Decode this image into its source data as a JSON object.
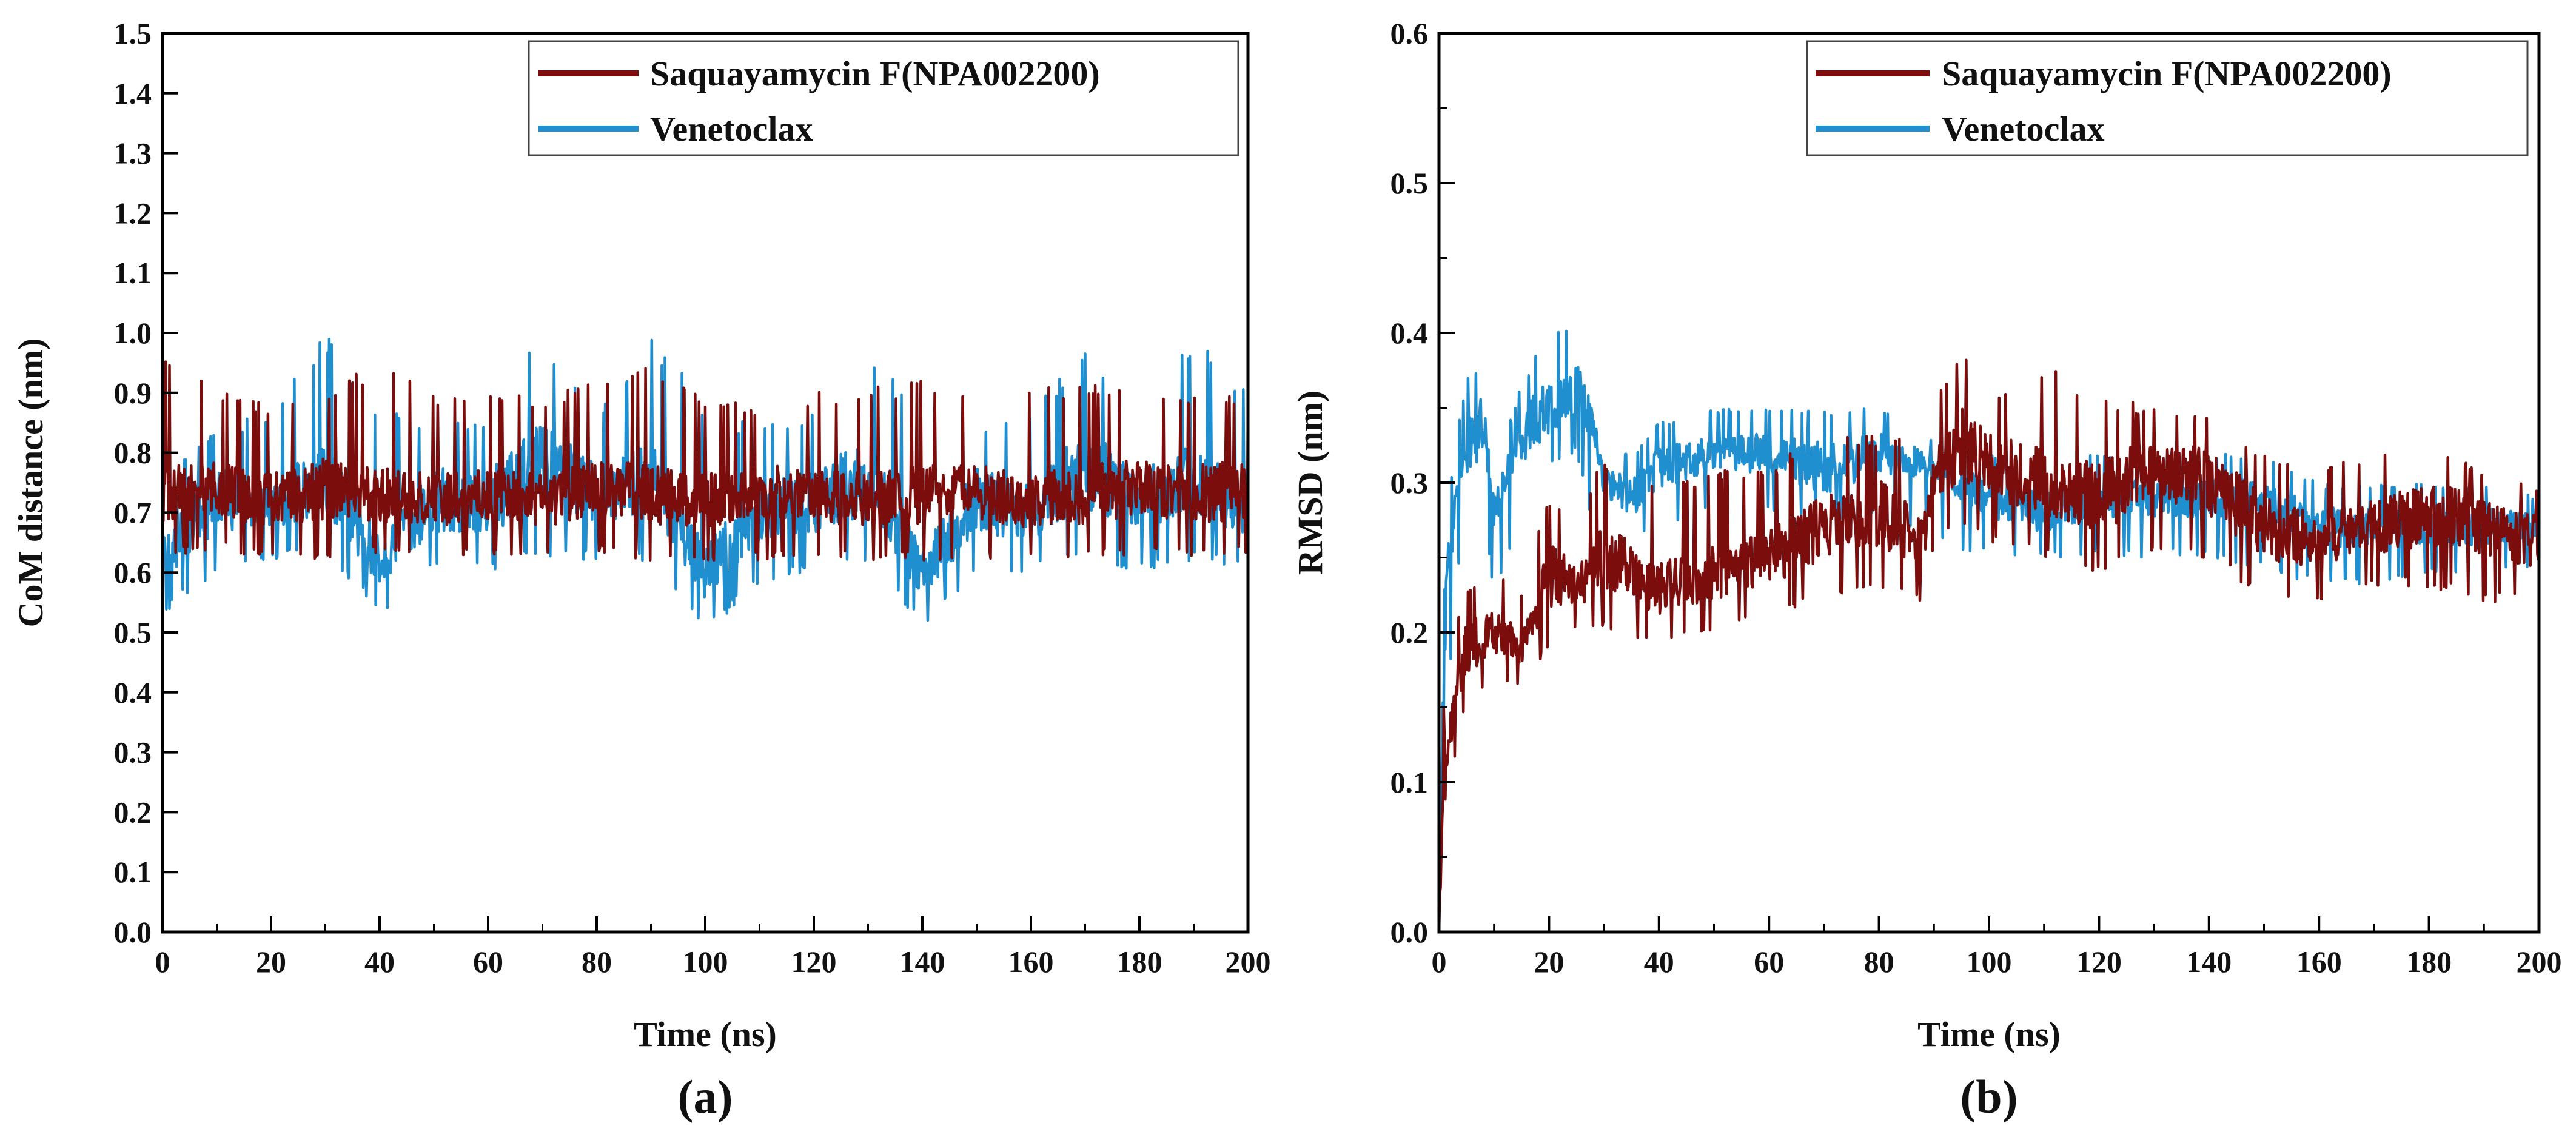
{
  "chart_data": [
    {
      "type": "line",
      "panel_label": "(a)",
      "xlabel": "Time (ns)",
      "ylabel": "CoM distance (nm)",
      "xlim": [
        0,
        200
      ],
      "ylim": [
        0.0,
        1.5
      ],
      "xticks": [
        "0",
        "20",
        "40",
        "60",
        "80",
        "100",
        "120",
        "140",
        "160",
        "180",
        "200"
      ],
      "yticks": [
        "0.0",
        "0.1",
        "0.2",
        "0.3",
        "0.4",
        "0.5",
        "0.6",
        "0.7",
        "0.8",
        "0.9",
        "1.0",
        "1.1",
        "1.2",
        "1.3",
        "1.4",
        "1.5"
      ],
      "legend_position": "top-right",
      "series": [
        {
          "name": "Saquayamycin F(NPA002200)",
          "color": "#7b0d0d",
          "x": [
            0,
            10,
            20,
            30,
            40,
            50,
            60,
            70,
            80,
            90,
            100,
            110,
            120,
            130,
            140,
            150,
            160,
            170,
            180,
            190,
            200
          ],
          "values": [
            0.73,
            0.74,
            0.72,
            0.74,
            0.73,
            0.72,
            0.73,
            0.72,
            0.74,
            0.73,
            0.72,
            0.73,
            0.73,
            0.72,
            0.73,
            0.73,
            0.72,
            0.73,
            0.74,
            0.73,
            0.74
          ],
          "fluct_low": [
            0.62,
            0.64,
            0.62,
            0.62,
            0.63,
            0.62,
            0.63,
            0.62,
            0.63,
            0.62,
            0.62,
            0.62,
            0.63,
            0.62,
            0.62,
            0.62,
            0.62,
            0.62,
            0.63,
            0.62,
            0.63
          ],
          "fluct_high": [
            0.96,
            0.91,
            0.88,
            0.9,
            0.96,
            0.9,
            0.91,
            0.9,
            0.92,
            0.95,
            0.9,
            0.88,
            0.9,
            0.91,
            0.92,
            0.9,
            0.92,
            0.91,
            0.93,
            0.9,
            0.9
          ]
        },
        {
          "name": "Venetoclax",
          "color": "#1f8fd0",
          "x": [
            0,
            10,
            20,
            30,
            40,
            50,
            60,
            70,
            80,
            90,
            100,
            110,
            120,
            130,
            140,
            150,
            160,
            170,
            180,
            190,
            200
          ],
          "values": [
            0.64,
            0.72,
            0.71,
            0.76,
            0.62,
            0.72,
            0.72,
            0.78,
            0.73,
            0.76,
            0.6,
            0.7,
            0.72,
            0.76,
            0.6,
            0.72,
            0.7,
            0.78,
            0.72,
            0.76,
            0.7
          ],
          "fluct_low": [
            0.53,
            0.6,
            0.62,
            0.63,
            0.53,
            0.6,
            0.6,
            0.62,
            0.62,
            0.62,
            0.5,
            0.58,
            0.6,
            0.62,
            0.51,
            0.6,
            0.6,
            0.62,
            0.6,
            0.62,
            0.6
          ],
          "fluct_high": [
            0.78,
            0.84,
            0.87,
            1.01,
            0.88,
            0.85,
            0.85,
            1.01,
            0.86,
            1.01,
            0.88,
            0.85,
            0.87,
            0.98,
            0.88,
            0.84,
            0.86,
            0.99,
            0.87,
            0.99,
            0.91
          ]
        }
      ]
    },
    {
      "type": "line",
      "panel_label": "(b)",
      "xlabel": "Time (ns)",
      "ylabel": "RMSD (nm)",
      "xlim": [
        0,
        200
      ],
      "ylim": [
        0.0,
        0.6
      ],
      "xticks": [
        "0",
        "20",
        "40",
        "60",
        "80",
        "100",
        "120",
        "140",
        "160",
        "180",
        "200"
      ],
      "yticks": [
        "0.0",
        "0.1",
        "0.2",
        "0.3",
        "0.4",
        "0.5",
        "0.6"
      ],
      "legend_position": "top-right",
      "series": [
        {
          "name": "Saquayamycin F(NPA002200)",
          "color": "#7b0d0d",
          "x": [
            0,
            1,
            3,
            5,
            10,
            15,
            20,
            25,
            30,
            40,
            50,
            60,
            70,
            80,
            88,
            90,
            95,
            100,
            110,
            120,
            130,
            140,
            150,
            160,
            170,
            180,
            190,
            200
          ],
          "values": [
            0.0,
            0.12,
            0.16,
            0.19,
            0.2,
            0.19,
            0.24,
            0.23,
            0.25,
            0.23,
            0.24,
            0.25,
            0.27,
            0.28,
            0.26,
            0.3,
            0.33,
            0.31,
            0.3,
            0.29,
            0.31,
            0.3,
            0.27,
            0.26,
            0.27,
            0.28,
            0.27,
            0.26
          ],
          "fluct_low": [
            0.0,
            0.08,
            0.12,
            0.15,
            0.17,
            0.16,
            0.19,
            0.2,
            0.2,
            0.19,
            0.2,
            0.21,
            0.22,
            0.23,
            0.22,
            0.26,
            0.27,
            0.26,
            0.25,
            0.24,
            0.25,
            0.25,
            0.22,
            0.22,
            0.23,
            0.23,
            0.22,
            0.22
          ],
          "fluct_high": [
            0.0,
            0.18,
            0.21,
            0.23,
            0.24,
            0.23,
            0.29,
            0.28,
            0.32,
            0.3,
            0.31,
            0.31,
            0.34,
            0.33,
            0.33,
            0.36,
            0.39,
            0.36,
            0.38,
            0.36,
            0.35,
            0.35,
            0.32,
            0.31,
            0.32,
            0.33,
            0.31,
            0.3
          ]
        },
        {
          "name": "Venetoclax",
          "color": "#1f8fd0",
          "x": [
            0,
            1,
            3,
            5,
            8,
            10,
            15,
            20,
            25,
            28,
            30,
            35,
            40,
            50,
            60,
            70,
            80,
            90,
            100,
            110,
            120,
            130,
            140,
            150,
            160,
            170,
            180,
            190,
            200
          ],
          "values": [
            0.0,
            0.2,
            0.3,
            0.32,
            0.34,
            0.28,
            0.33,
            0.35,
            0.36,
            0.34,
            0.3,
            0.29,
            0.31,
            0.32,
            0.32,
            0.31,
            0.32,
            0.31,
            0.29,
            0.28,
            0.29,
            0.29,
            0.29,
            0.29,
            0.27,
            0.27,
            0.27,
            0.27,
            0.27
          ],
          "fluct_low": [
            0.0,
            0.12,
            0.22,
            0.28,
            0.28,
            0.22,
            0.28,
            0.31,
            0.32,
            0.27,
            0.26,
            0.26,
            0.27,
            0.28,
            0.28,
            0.27,
            0.28,
            0.26,
            0.25,
            0.25,
            0.25,
            0.25,
            0.25,
            0.24,
            0.23,
            0.23,
            0.24,
            0.24,
            0.24
          ],
          "fluct_high": [
            0.0,
            0.27,
            0.33,
            0.37,
            0.38,
            0.3,
            0.37,
            0.4,
            0.41,
            0.36,
            0.32,
            0.32,
            0.34,
            0.35,
            0.35,
            0.35,
            0.35,
            0.33,
            0.32,
            0.31,
            0.32,
            0.32,
            0.32,
            0.32,
            0.3,
            0.3,
            0.3,
            0.3,
            0.29
          ]
        }
      ]
    }
  ]
}
